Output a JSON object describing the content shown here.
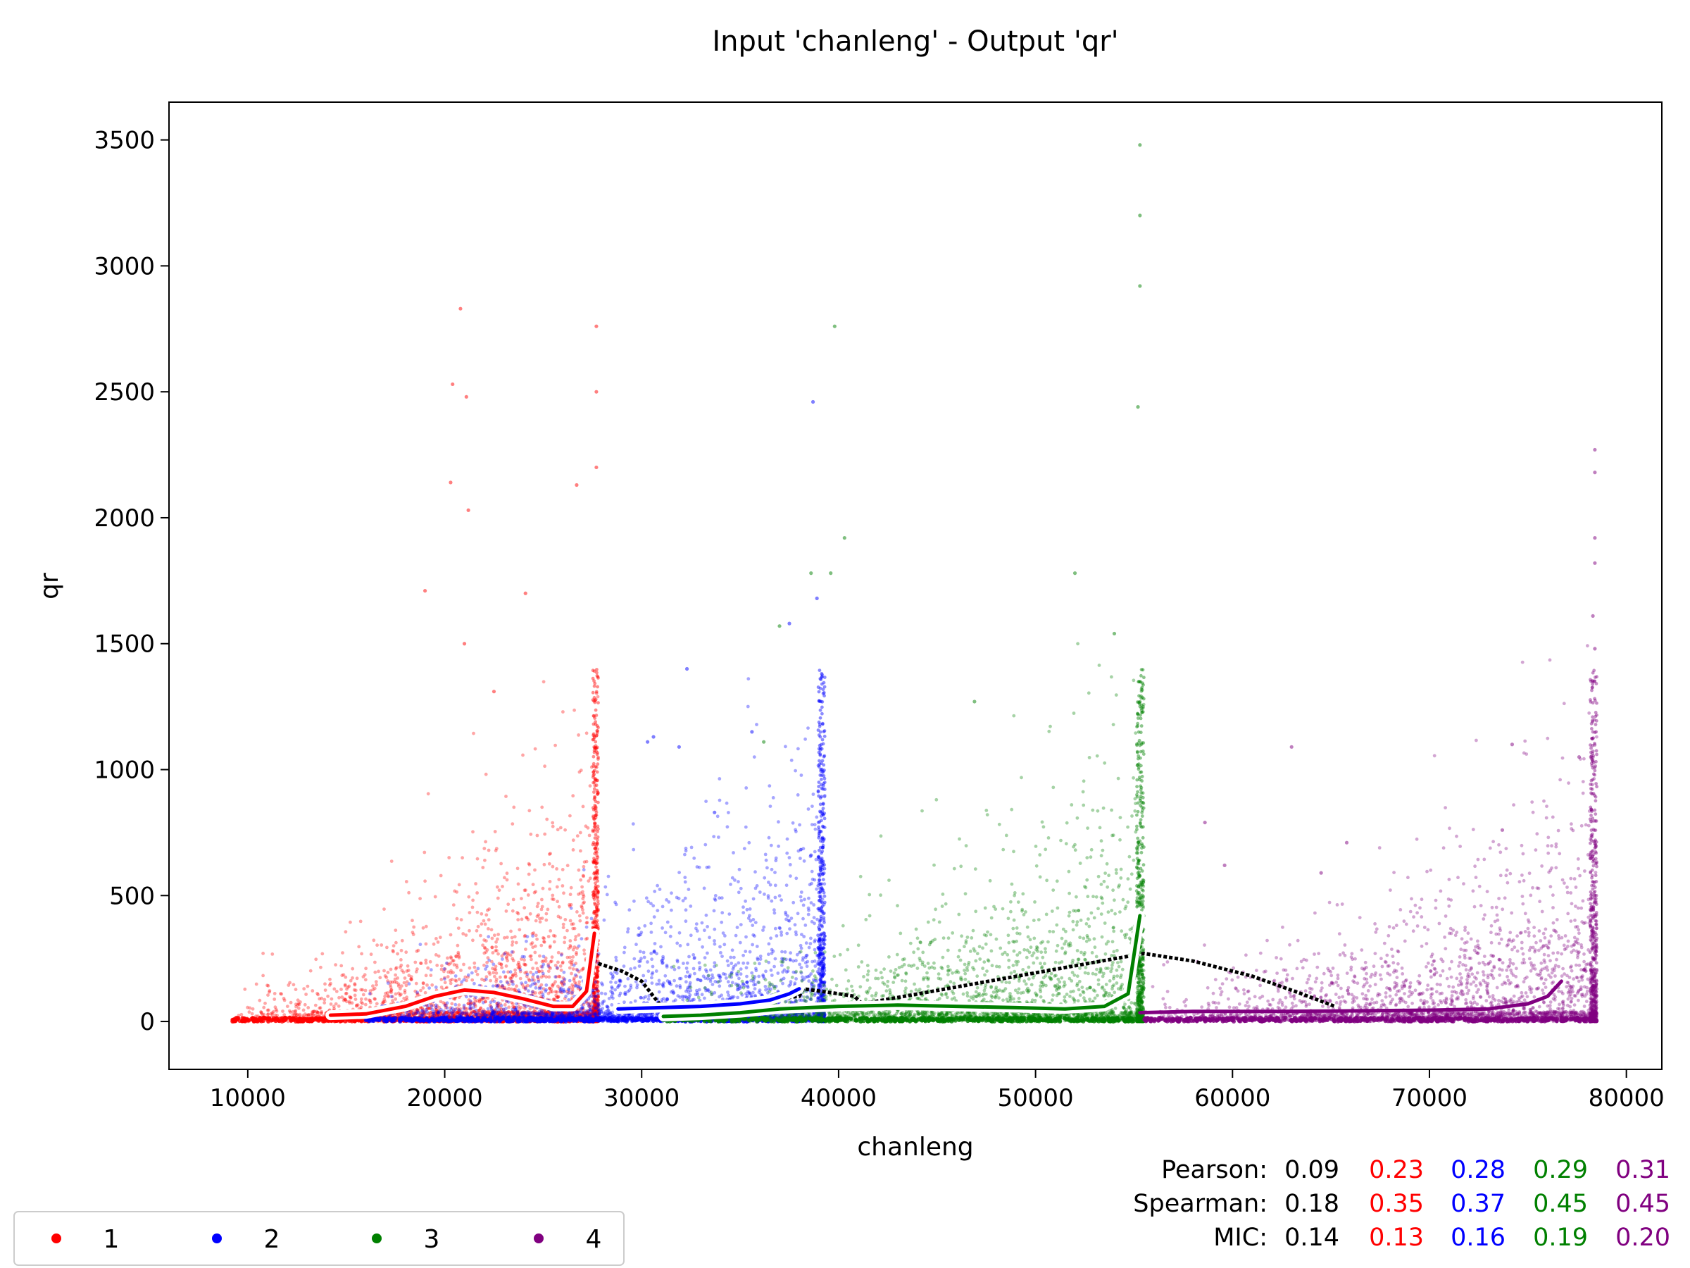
{
  "chart_data": {
    "type": "scatter",
    "title": "Input 'chanleng' - Output 'qr'",
    "xlabel": "chanleng",
    "ylabel": "qr",
    "xlim": [
      6000,
      81800
    ],
    "ylim": [
      -190,
      3650
    ],
    "xticks": [
      10000,
      20000,
      30000,
      40000,
      50000,
      60000,
      70000,
      80000
    ],
    "yticks": [
      0,
      500,
      1000,
      1500,
      2000,
      2500,
      3000,
      3500
    ],
    "grid": false,
    "legend": {
      "placement": "lower-left, below axes",
      "ncol": 4
    },
    "series": [
      {
        "name": "1",
        "color": "#ff0000",
        "x_range": [
          9200,
          27800
        ],
        "highlight_points": [
          [
            20800,
            2830
          ],
          [
            27700,
            2760
          ],
          [
            20400,
            2530
          ],
          [
            21100,
            2480
          ],
          [
            27700,
            2500
          ],
          [
            20300,
            2140
          ],
          [
            21200,
            2030
          ],
          [
            26700,
            2130
          ],
          [
            27700,
            2200
          ],
          [
            19000,
            1710
          ],
          [
            24100,
            1700
          ],
          [
            21000,
            1500
          ],
          [
            22500,
            1310
          ]
        ],
        "trend": [
          [
            14200,
            25
          ],
          [
            16000,
            30
          ],
          [
            18000,
            60
          ],
          [
            19500,
            100
          ],
          [
            21000,
            125
          ],
          [
            22500,
            115
          ],
          [
            24000,
            90
          ],
          [
            25500,
            60
          ],
          [
            26500,
            60
          ],
          [
            27200,
            120
          ],
          [
            27600,
            350
          ]
        ]
      },
      {
        "name": "2",
        "color": "#0000ff",
        "x_range": [
          16000,
          39300
        ],
        "highlight_points": [
          [
            38700,
            2460
          ],
          [
            38900,
            1680
          ],
          [
            37500,
            1580
          ],
          [
            32300,
            1400
          ],
          [
            30600,
            1130
          ],
          [
            31900,
            1090
          ],
          [
            35600,
            1150
          ],
          [
            30300,
            1110
          ],
          [
            33700,
            830
          ],
          [
            38600,
            660
          ]
        ],
        "trend": [
          [
            28800,
            50
          ],
          [
            31000,
            55
          ],
          [
            33000,
            60
          ],
          [
            35000,
            70
          ],
          [
            36500,
            85
          ],
          [
            37500,
            110
          ],
          [
            38000,
            130
          ]
        ]
      },
      {
        "name": "3",
        "color": "#008000",
        "x_range": [
          31000,
          55500
        ],
        "highlight_points": [
          [
            55300,
            3480
          ],
          [
            55300,
            3200
          ],
          [
            55300,
            2920
          ],
          [
            55200,
            2440
          ],
          [
            39800,
            2760
          ],
          [
            40300,
            1920
          ],
          [
            38600,
            1780
          ],
          [
            39600,
            1780
          ],
          [
            52000,
            1780
          ],
          [
            54000,
            1540
          ],
          [
            37000,
            1570
          ],
          [
            36200,
            1110
          ],
          [
            46900,
            1270
          ]
        ],
        "trend": [
          [
            31100,
            20
          ],
          [
            33000,
            25
          ],
          [
            35000,
            35
          ],
          [
            37000,
            50
          ],
          [
            40000,
            60
          ],
          [
            43000,
            65
          ],
          [
            46000,
            60
          ],
          [
            49000,
            55
          ],
          [
            51500,
            50
          ],
          [
            53500,
            60
          ],
          [
            54700,
            110
          ],
          [
            55300,
            420
          ]
        ]
      },
      {
        "name": "4",
        "color": "#800080",
        "x_range": [
          55500,
          78500
        ],
        "highlight_points": [
          [
            78400,
            2270
          ],
          [
            78400,
            2180
          ],
          [
            78400,
            1920
          ],
          [
            78400,
            1820
          ],
          [
            78300,
            1610
          ],
          [
            78400,
            1480
          ],
          [
            63000,
            1090
          ],
          [
            74200,
            1100
          ],
          [
            77600,
            1050
          ],
          [
            58600,
            790
          ],
          [
            73700,
            760
          ],
          [
            65800,
            710
          ],
          [
            59600,
            620
          ],
          [
            64500,
            590
          ]
        ],
        "trend": [
          [
            55300,
            35
          ],
          [
            58000,
            40
          ],
          [
            62000,
            40
          ],
          [
            66000,
            42
          ],
          [
            70000,
            45
          ],
          [
            73000,
            50
          ],
          [
            75000,
            70
          ],
          [
            76000,
            100
          ],
          [
            76700,
            160
          ]
        ]
      }
    ],
    "global_trend": [
      [
        27800,
        230
      ],
      [
        29000,
        200
      ],
      [
        30000,
        160
      ],
      [
        30800,
        80
      ],
      [
        31200,
        40
      ],
      [
        38000,
        100
      ],
      [
        38200,
        130
      ],
      [
        40000,
        110
      ],
      [
        40800,
        100
      ],
      [
        41200,
        70
      ],
      [
        55500,
        270
      ],
      [
        58000,
        240
      ],
      [
        61000,
        180
      ],
      [
        63500,
        110
      ],
      [
        65200,
        60
      ]
    ],
    "stats": {
      "rows": [
        {
          "label": "Pearson:",
          "values": [
            "0.09",
            "0.23",
            "0.28",
            "0.29",
            "0.31"
          ]
        },
        {
          "label": "Spearman:",
          "values": [
            "0.18",
            "0.35",
            "0.37",
            "0.45",
            "0.45"
          ]
        },
        {
          "label": "MIC:",
          "values": [
            "0.14",
            "0.13",
            "0.16",
            "0.19",
            "0.20"
          ]
        }
      ],
      "colors": [
        "#000000",
        "#ff0000",
        "#0000ff",
        "#008000",
        "#800080"
      ]
    }
  }
}
